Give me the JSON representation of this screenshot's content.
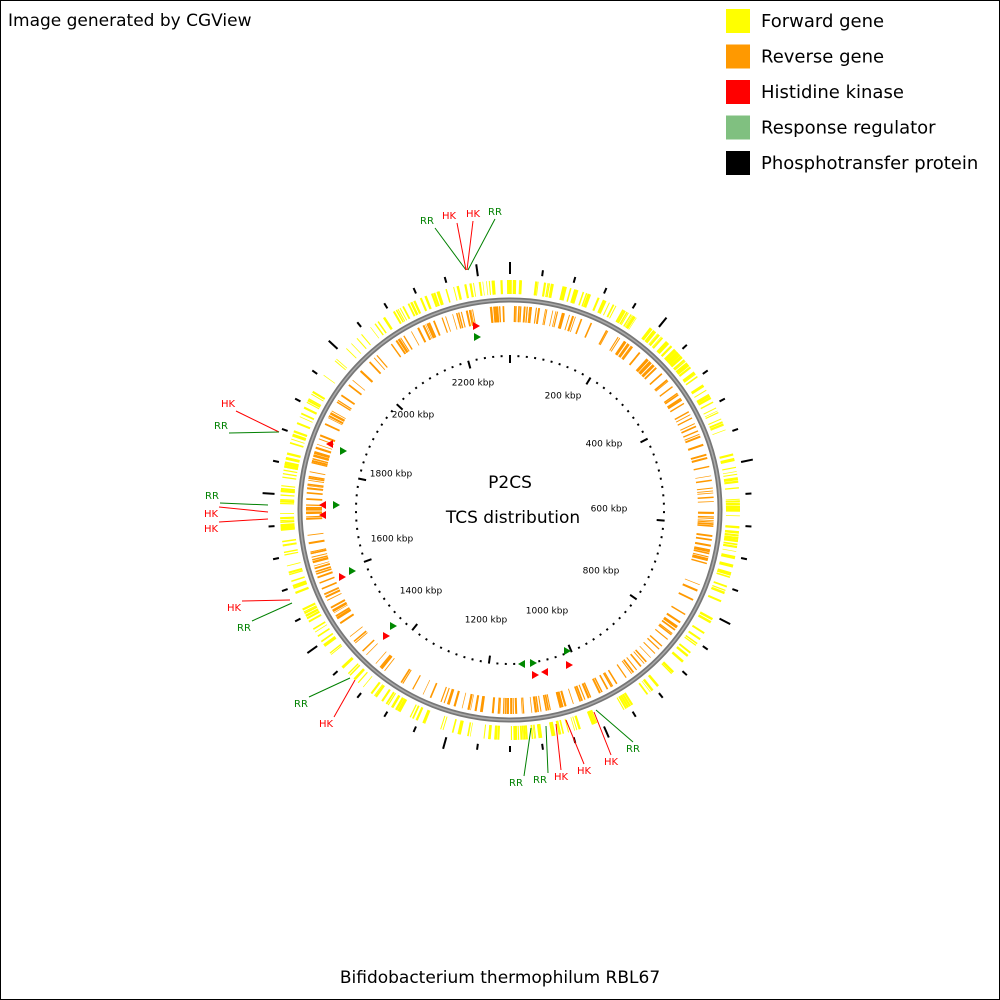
{
  "header": {
    "credit": "Image generated by CGView"
  },
  "legend": [
    {
      "label": "Forward gene",
      "color": "#ffff00"
    },
    {
      "label": "Reverse gene",
      "color": "#ff9900"
    },
    {
      "label": "Histidine kinase",
      "color": "#ff0000"
    },
    {
      "label": "Response regulator",
      "color": "#80c080"
    },
    {
      "label": "Phosphotransfer protein",
      "color": "#000000"
    }
  ],
  "center": {
    "title": "P2CS",
    "subtitle": "TCS distribution"
  },
  "scale_labels": [
    "200 kbp",
    "400 kbp",
    "600 kbp",
    "800 kbp",
    "1000 kbp",
    "1200 kbp",
    "1400 kbp",
    "1600 kbp",
    "1800 kbp",
    "2000 kbp",
    "2200 kbp"
  ],
  "features": [
    {
      "label": "RR",
      "color": "#008000"
    },
    {
      "label": "HK",
      "color": "#ff0000"
    },
    {
      "label": "HK",
      "color": "#ff0000"
    },
    {
      "label": "RR",
      "color": "#008000"
    },
    {
      "label": "HK",
      "color": "#ff0000"
    },
    {
      "label": "RR",
      "color": "#008000"
    },
    {
      "label": "RR",
      "color": "#008000"
    },
    {
      "label": "HK",
      "color": "#ff0000"
    },
    {
      "label": "HK",
      "color": "#ff0000"
    },
    {
      "label": "HK",
      "color": "#ff0000"
    },
    {
      "label": "RR",
      "color": "#008000"
    },
    {
      "label": "RR",
      "color": "#008000"
    },
    {
      "label": "HK",
      "color": "#ff0000"
    },
    {
      "label": "RR",
      "color": "#008000"
    },
    {
      "label": "RR",
      "color": "#008000"
    },
    {
      "label": "HK",
      "color": "#ff0000"
    },
    {
      "label": "HK",
      "color": "#ff0000"
    },
    {
      "label": "HK",
      "color": "#ff0000"
    },
    {
      "label": "RR",
      "color": "#008000"
    }
  ],
  "caption": "Bifidobacterium thermophilum RBL67"
}
